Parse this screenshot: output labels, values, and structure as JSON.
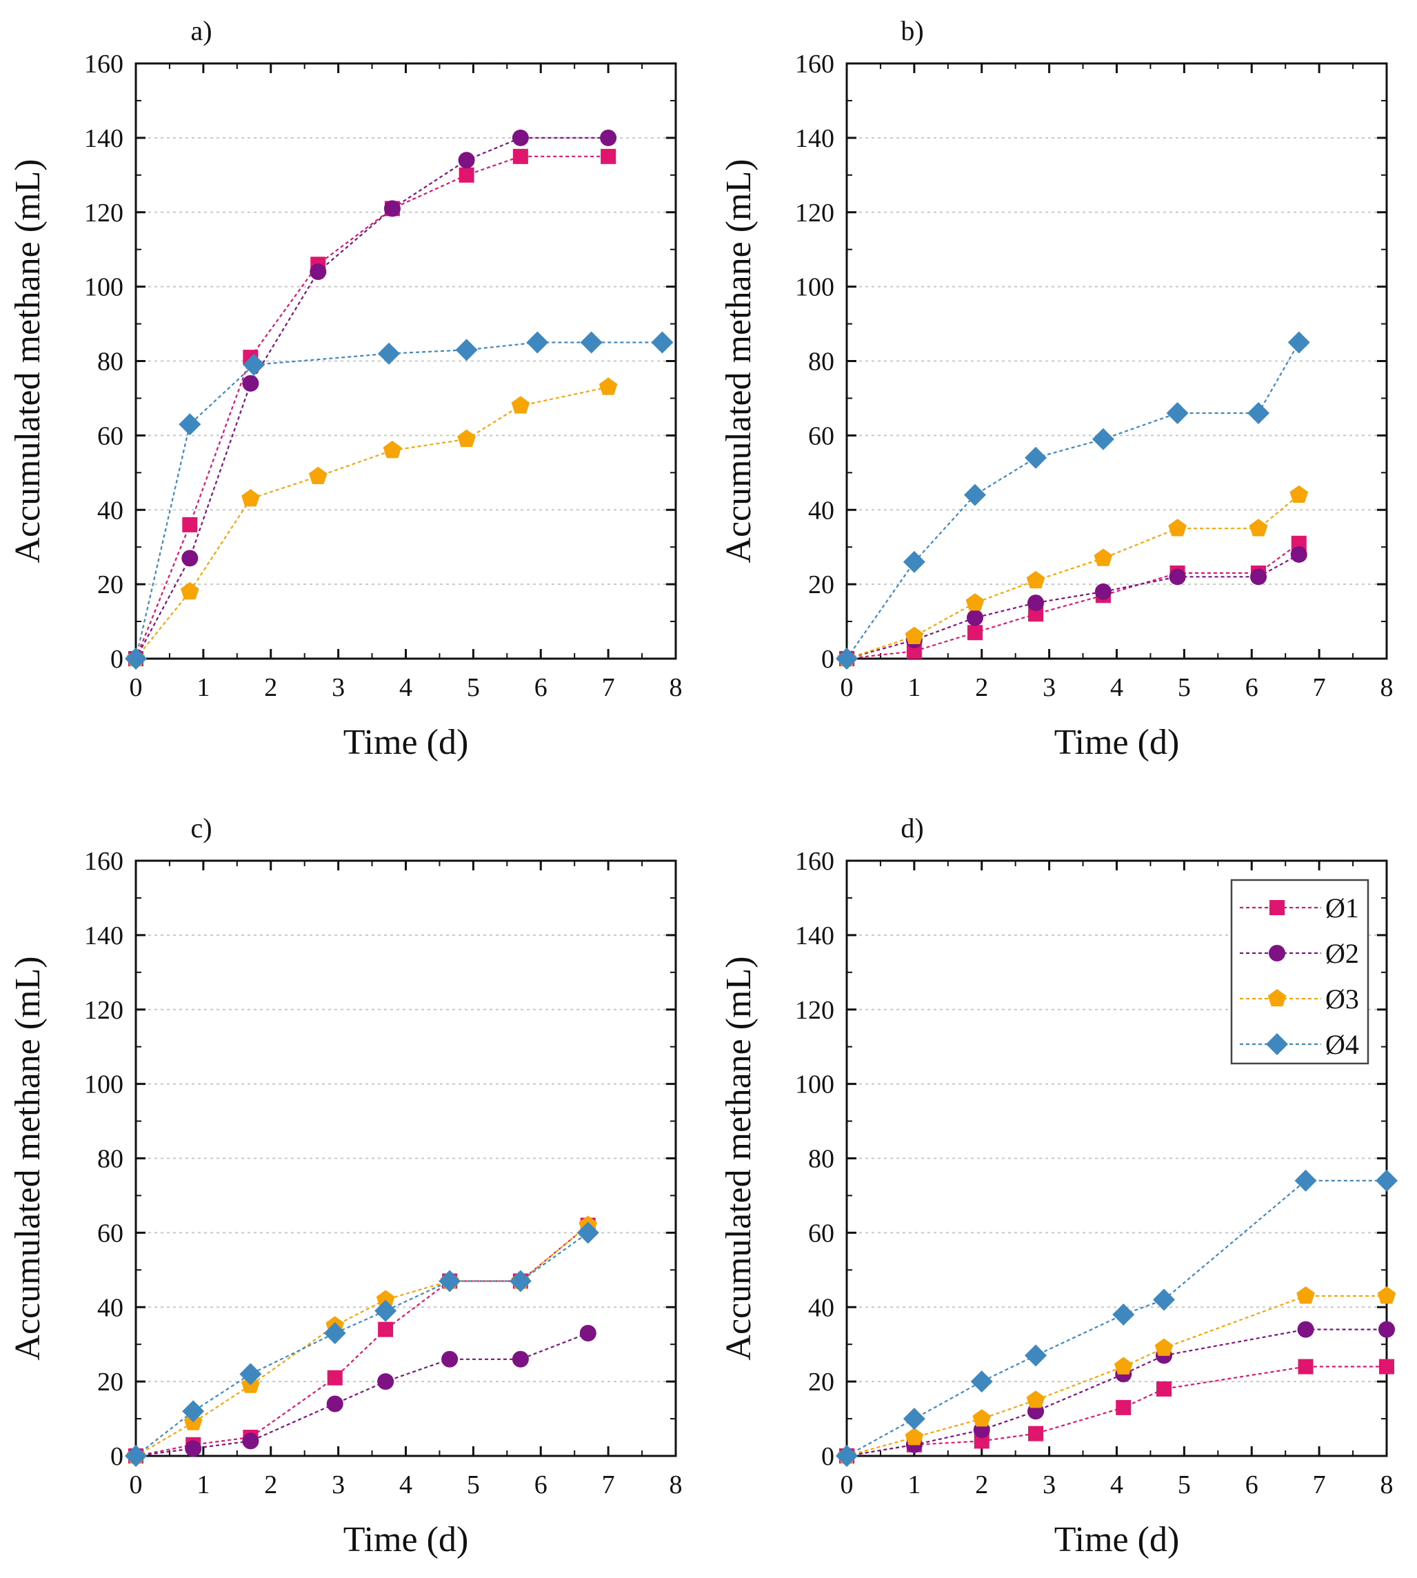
{
  "colors": {
    "s1": "#e0156e",
    "s2": "#7e1183",
    "s3": "#f7a407",
    "s4": "#3f88bf",
    "axis": "#111111",
    "grid": "#c8c8c8"
  },
  "legend": {
    "panel_index": 3,
    "entries": [
      {
        "name": "Ø1",
        "marker": "square",
        "color": "#e0156e"
      },
      {
        "name": "Ø2",
        "marker": "circle",
        "color": "#7e1183"
      },
      {
        "name": "Ø3",
        "marker": "pentagon",
        "color": "#f7a407"
      },
      {
        "name": "Ø4",
        "marker": "diamond",
        "color": "#3f88bf"
      }
    ]
  },
  "chart_data": [
    {
      "type": "line",
      "title": "a)",
      "xlabel": "Time (d)",
      "ylabel": "Accumulated methane (mL)",
      "xlim": [
        0,
        8
      ],
      "ylim": [
        0,
        160
      ],
      "xticks": [
        "0",
        "1",
        "2",
        "3",
        "4",
        "5",
        "6",
        "7",
        "8"
      ],
      "yticks": [
        "0",
        "20",
        "40",
        "60",
        "80",
        "100",
        "120",
        "140",
        "160"
      ],
      "grid": true,
      "series": [
        {
          "name": "Ø1",
          "x": [
            0,
            0.8,
            1.7,
            2.7,
            3.8,
            4.9,
            5.7,
            7.0
          ],
          "y": [
            0,
            36,
            81,
            106,
            121,
            130,
            135,
            135
          ]
        },
        {
          "name": "Ø2",
          "x": [
            0,
            0.8,
            1.7,
            2.7,
            3.8,
            4.9,
            5.7,
            7.0
          ],
          "y": [
            0,
            27,
            74,
            104,
            121,
            134,
            140,
            140
          ]
        },
        {
          "name": "Ø3",
          "x": [
            0,
            0.8,
            1.7,
            2.7,
            3.8,
            4.9,
            5.7,
            7.0
          ],
          "y": [
            0,
            18,
            43,
            49,
            56,
            59,
            68,
            73
          ]
        },
        {
          "name": "Ø4",
          "x": [
            0,
            0.8,
            1.75,
            3.75,
            4.9,
            5.95,
            6.75,
            7.8
          ],
          "y": [
            0,
            63,
            79,
            82,
            83,
            85,
            85,
            85
          ]
        }
      ]
    },
    {
      "type": "line",
      "title": "b)",
      "xlabel": "Time (d)",
      "ylabel": "Accumulated methane (mL)",
      "xlim": [
        0,
        8
      ],
      "ylim": [
        0,
        160
      ],
      "xticks": [
        "0",
        "1",
        "2",
        "3",
        "4",
        "5",
        "6",
        "7",
        "8"
      ],
      "yticks": [
        "0",
        "20",
        "40",
        "60",
        "80",
        "100",
        "120",
        "140",
        "160"
      ],
      "grid": true,
      "series": [
        {
          "name": "Ø1",
          "x": [
            0,
            1.0,
            1.9,
            2.8,
            3.8,
            4.9,
            6.1,
            6.7
          ],
          "y": [
            0,
            2,
            7,
            12,
            17,
            23,
            23,
            31
          ]
        },
        {
          "name": "Ø2",
          "x": [
            0,
            1.0,
            1.9,
            2.8,
            3.8,
            4.9,
            6.1,
            6.7
          ],
          "y": [
            0,
            5,
            11,
            15,
            18,
            22,
            22,
            28
          ]
        },
        {
          "name": "Ø3",
          "x": [
            0,
            1.0,
            1.9,
            2.8,
            3.8,
            4.9,
            6.1,
            6.7
          ],
          "y": [
            0,
            6,
            15,
            21,
            27,
            35,
            35,
            44
          ]
        },
        {
          "name": "Ø4",
          "x": [
            0,
            1.0,
            1.9,
            2.8,
            3.8,
            4.9,
            6.1,
            6.7
          ],
          "y": [
            0,
            26,
            44,
            54,
            59,
            66,
            66,
            85
          ]
        }
      ]
    },
    {
      "type": "line",
      "title": "c)",
      "xlabel": "Time (d)",
      "ylabel": "Accumulated methane (mL)",
      "xlim": [
        0,
        8
      ],
      "ylim": [
        0,
        160
      ],
      "xticks": [
        "0",
        "1",
        "2",
        "3",
        "4",
        "5",
        "6",
        "7",
        "8"
      ],
      "yticks": [
        "0",
        "20",
        "40",
        "60",
        "80",
        "100",
        "120",
        "140",
        "160"
      ],
      "grid": true,
      "series": [
        {
          "name": "Ø1",
          "x": [
            0,
            0.85,
            1.7,
            2.95,
            3.7,
            4.65,
            5.7,
            6.7
          ],
          "y": [
            0,
            3,
            5,
            21,
            34,
            47,
            47,
            62
          ]
        },
        {
          "name": "Ø2",
          "x": [
            0,
            0.85,
            1.7,
            2.95,
            3.7,
            4.65,
            5.7,
            6.7
          ],
          "y": [
            0,
            2,
            4,
            14,
            20,
            26,
            26,
            33
          ]
        },
        {
          "name": "Ø3",
          "x": [
            0,
            0.85,
            1.7,
            2.95,
            3.7,
            4.65,
            5.7,
            6.7
          ],
          "y": [
            0,
            9,
            19,
            35,
            42,
            47,
            47,
            62
          ]
        },
        {
          "name": "Ø4",
          "x": [
            0,
            0.85,
            1.7,
            2.95,
            3.7,
            4.65,
            5.7,
            6.7
          ],
          "y": [
            0,
            12,
            22,
            33,
            39,
            47,
            47,
            60
          ]
        }
      ]
    },
    {
      "type": "line",
      "title": "d)",
      "xlabel": "Time (d)",
      "ylabel": "Accumulated methane (mL)",
      "xlim": [
        0,
        8
      ],
      "ylim": [
        0,
        160
      ],
      "xticks": [
        "0",
        "1",
        "2",
        "3",
        "4",
        "5",
        "6",
        "7",
        "8"
      ],
      "yticks": [
        "0",
        "20",
        "40",
        "60",
        "80",
        "100",
        "120",
        "140",
        "160"
      ],
      "grid": true,
      "series": [
        {
          "name": "Ø1",
          "x": [
            0,
            1.0,
            2.0,
            2.8,
            4.1,
            4.7,
            6.8,
            8.0
          ],
          "y": [
            0,
            3,
            4,
            6,
            13,
            18,
            24,
            24
          ]
        },
        {
          "name": "Ø2",
          "x": [
            0,
            1.0,
            2.0,
            2.8,
            4.1,
            4.7,
            6.8,
            8.0
          ],
          "y": [
            0,
            3,
            7,
            12,
            22,
            27,
            34,
            34
          ]
        },
        {
          "name": "Ø3",
          "x": [
            0,
            1.0,
            2.0,
            2.8,
            4.1,
            4.7,
            6.8,
            8.0
          ],
          "y": [
            0,
            5,
            10,
            15,
            24,
            29,
            43,
            43
          ]
        },
        {
          "name": "Ø4",
          "x": [
            0,
            1.0,
            2.0,
            2.8,
            4.1,
            4.7,
            6.8,
            8.0
          ],
          "y": [
            0,
            10,
            20,
            27,
            38,
            42,
            74,
            74
          ]
        }
      ]
    }
  ]
}
